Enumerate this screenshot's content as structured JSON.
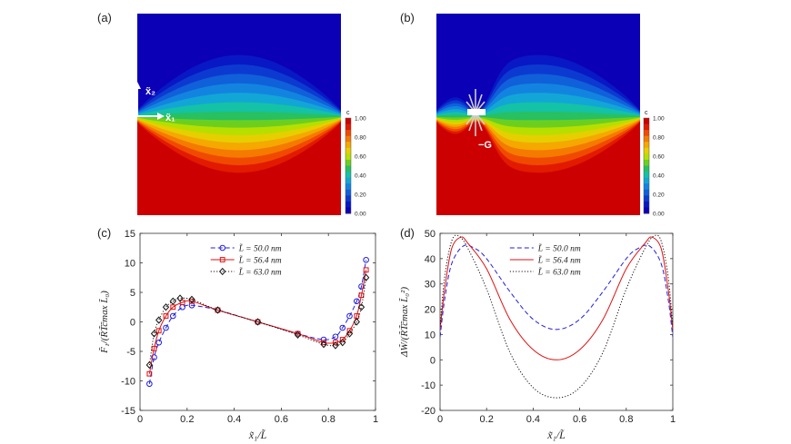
{
  "figure": {
    "panels": {
      "a": {
        "label": "(a)",
        "axis_x2": "x̃₂",
        "axis_x1": "x̃₁"
      },
      "b": {
        "label": "(b)",
        "force_label": "−G"
      },
      "c": {
        "label": "(c)"
      },
      "d": {
        "label": "(d)"
      }
    },
    "colorbar": {
      "title": "c",
      "ticks": [
        "1.00",
        "0.80",
        "0.60",
        "0.40",
        "0.20",
        "0.00"
      ],
      "colors": [
        "#cc0000",
        "#e21a00",
        "#f04a00",
        "#f57a00",
        "#f5a800",
        "#e6cf00",
        "#b6df00",
        "#6ccf20",
        "#28c060",
        "#14c2a6",
        "#12a6d6",
        "#1284e0",
        "#1060da",
        "#0c3ad0",
        "#0818c4",
        "#0c00b6"
      ]
    }
  },
  "chart_data": [
    {
      "type": "line",
      "panel": "(c)",
      "xlabel": "x̃₁/L̃",
      "ylabel": "F̃₁/(R̃T̃c̃max L̃₀)",
      "xlim": [
        0,
        1
      ],
      "ylim": [
        -15,
        15
      ],
      "xticks": [
        "0",
        "0.2",
        "0.4",
        "0.6",
        "0.8",
        "1"
      ],
      "yticks": [
        "15",
        "10",
        "5",
        "0",
        "-5",
        "-10",
        "-15"
      ],
      "legend_position": "top-center",
      "series": [
        {
          "name": "L̃ = 50.0 nm",
          "color": "#1f1fe0",
          "style": "dashed",
          "marker": "circle",
          "x": [
            0.04,
            0.06,
            0.08,
            0.11,
            0.14,
            0.18,
            0.22,
            0.33,
            0.5,
            0.67,
            0.78,
            0.83,
            0.86,
            0.89,
            0.92,
            0.94,
            0.96
          ],
          "y": [
            -10.5,
            -6,
            -3.5,
            -1,
            1,
            2.5,
            2.8,
            2,
            0,
            -2,
            -3,
            -2.5,
            -1,
            1,
            3.5,
            6,
            10.5
          ]
        },
        {
          "name": "L̃ = 56.4 nm",
          "color": "#e01010",
          "style": "solid",
          "marker": "square",
          "x": [
            0.04,
            0.06,
            0.08,
            0.11,
            0.14,
            0.18,
            0.22,
            0.33,
            0.5,
            0.67,
            0.78,
            0.83,
            0.86,
            0.89,
            0.92,
            0.94,
            0.96
          ],
          "y": [
            -8.8,
            -4.5,
            -1.5,
            1,
            2.5,
            3.3,
            3.5,
            2,
            0,
            -2,
            -3.5,
            -3.5,
            -3,
            -1.5,
            1,
            4.5,
            8.8
          ]
        },
        {
          "name": "L̃ = 63.0 nm",
          "color": "#111111",
          "style": "dotted",
          "marker": "diamond",
          "x": [
            0.04,
            0.06,
            0.08,
            0.11,
            0.14,
            0.17,
            0.22,
            0.33,
            0.5,
            0.67,
            0.78,
            0.83,
            0.86,
            0.89,
            0.92,
            0.94,
            0.96
          ],
          "y": [
            -7.3,
            -2,
            0.3,
            2.5,
            3.5,
            4,
            3.8,
            2,
            0,
            -2.2,
            -3.8,
            -4,
            -3.5,
            -2,
            0,
            2.5,
            7.5
          ]
        }
      ]
    },
    {
      "type": "line",
      "panel": "(d)",
      "xlabel": "x̃₁/L̃",
      "ylabel": "ΔW̃/(R̃T̃c̃max L̃₀²)",
      "xlim": [
        0,
        1
      ],
      "ylim": [
        -20,
        50
      ],
      "xticks": [
        "0",
        "0.2",
        "0.4",
        "0.6",
        "0.8",
        "1"
      ],
      "yticks": [
        "50",
        "40",
        "30",
        "20",
        "10",
        "0",
        "-10",
        "-20"
      ],
      "legend_position": "top-center",
      "series": [
        {
          "name": "L̃ = 50.0 nm",
          "color": "#1f1fe0",
          "style": "dashed",
          "x": [
            0,
            0.02,
            0.05,
            0.1,
            0.15,
            0.2,
            0.3,
            0.4,
            0.5,
            0.6,
            0.7,
            0.8,
            0.85,
            0.9,
            0.95,
            0.98,
            1
          ],
          "y": [
            9,
            24,
            38,
            45,
            44,
            40,
            27,
            16,
            12,
            16,
            27,
            40,
            44,
            45,
            38,
            24,
            9
          ]
        },
        {
          "name": "L̃ = 56.4 nm",
          "color": "#e01010",
          "style": "solid",
          "x": [
            0,
            0.02,
            0.05,
            0.09,
            0.12,
            0.2,
            0.3,
            0.4,
            0.5,
            0.6,
            0.7,
            0.8,
            0.88,
            0.91,
            0.95,
            0.98,
            1
          ],
          "y": [
            12,
            28,
            44,
            48.5,
            46,
            36,
            16,
            4,
            0,
            4,
            16,
            36,
            46,
            48.5,
            44,
            28,
            12
          ]
        },
        {
          "name": "L̃ = 63.0 nm",
          "color": "#111111",
          "style": "dotted",
          "x": [
            0,
            0.02,
            0.05,
            0.08,
            0.12,
            0.2,
            0.3,
            0.4,
            0.5,
            0.6,
            0.7,
            0.8,
            0.88,
            0.92,
            0.95,
            0.98,
            1
          ],
          "y": [
            13,
            33,
            47,
            49,
            44,
            28,
            3,
            -11,
            -15,
            -11,
            3,
            28,
            44,
            49,
            47,
            33,
            13
          ]
        }
      ]
    }
  ]
}
